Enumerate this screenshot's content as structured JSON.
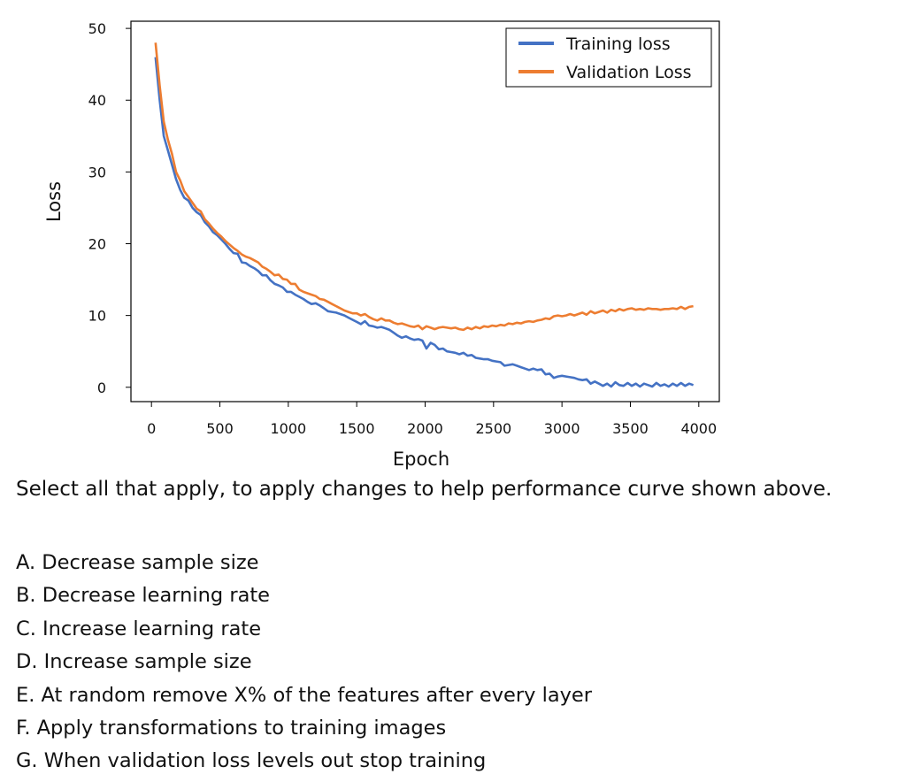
{
  "chart_data": {
    "type": "line",
    "xlabel": "Epoch",
    "ylabel": "Loss",
    "xlim": [
      -150,
      4150
    ],
    "ylim": [
      -2,
      51
    ],
    "x_ticks": [
      "0",
      "500",
      "1000",
      "1500",
      "2000",
      "2500",
      "3000",
      "3500",
      "4000"
    ],
    "y_ticks": [
      "0",
      "10",
      "20",
      "30",
      "40",
      "50"
    ],
    "legend_position": "top-right",
    "grid": false,
    "series": [
      {
        "name": "Training loss",
        "color": "#4472c4",
        "points": [
          [
            30,
            46
          ],
          [
            60,
            40
          ],
          [
            90,
            35
          ],
          [
            120,
            33
          ],
          [
            150,
            31
          ],
          [
            180,
            29
          ],
          [
            210,
            27.5
          ],
          [
            240,
            26.4
          ],
          [
            270,
            26
          ],
          [
            300,
            25
          ],
          [
            330,
            24.4
          ],
          [
            360,
            24
          ],
          [
            390,
            23
          ],
          [
            420,
            22.4
          ],
          [
            450,
            21.6
          ],
          [
            480,
            21.2
          ],
          [
            510,
            20.6
          ],
          [
            540,
            20
          ],
          [
            570,
            19.3
          ],
          [
            600,
            18.7
          ],
          [
            630,
            18.6
          ],
          [
            660,
            17.4
          ],
          [
            690,
            17.3
          ],
          [
            720,
            16.9
          ],
          [
            750,
            16.6
          ],
          [
            780,
            16.2
          ],
          [
            810,
            15.6
          ],
          [
            840,
            15.6
          ],
          [
            870,
            14.9
          ],
          [
            900,
            14.4
          ],
          [
            930,
            14.2
          ],
          [
            960,
            13.9
          ],
          [
            990,
            13.3
          ],
          [
            1020,
            13.3
          ],
          [
            1050,
            12.9
          ],
          [
            1080,
            12.6
          ],
          [
            1110,
            12.3
          ],
          [
            1140,
            11.9
          ],
          [
            1170,
            11.6
          ],
          [
            1200,
            11.7
          ],
          [
            1230,
            11.4
          ],
          [
            1260,
            11
          ],
          [
            1290,
            10.6
          ],
          [
            1320,
            10.5
          ],
          [
            1350,
            10.4
          ],
          [
            1380,
            10.2
          ],
          [
            1410,
            10
          ],
          [
            1440,
            9.7
          ],
          [
            1470,
            9.4
          ],
          [
            1500,
            9.1
          ],
          [
            1530,
            8.8
          ],
          [
            1560,
            9.2
          ],
          [
            1590,
            8.6
          ],
          [
            1620,
            8.5
          ],
          [
            1650,
            8.3
          ],
          [
            1680,
            8.4
          ],
          [
            1710,
            8.2
          ],
          [
            1740,
            8.0
          ],
          [
            1770,
            7.6
          ],
          [
            1800,
            7.2
          ],
          [
            1830,
            6.9
          ],
          [
            1860,
            7.1
          ],
          [
            1890,
            6.8
          ],
          [
            1920,
            6.6
          ],
          [
            1950,
            6.7
          ],
          [
            1980,
            6.5
          ],
          [
            2010,
            5.4
          ],
          [
            2040,
            6.2
          ],
          [
            2070,
            5.9
          ],
          [
            2100,
            5.3
          ],
          [
            2130,
            5.4
          ],
          [
            2160,
            5.0
          ],
          [
            2190,
            4.9
          ],
          [
            2220,
            4.8
          ],
          [
            2250,
            4.6
          ],
          [
            2280,
            4.8
          ],
          [
            2310,
            4.4
          ],
          [
            2340,
            4.5
          ],
          [
            2370,
            4.1
          ],
          [
            2400,
            4.0
          ],
          [
            2430,
            3.9
          ],
          [
            2460,
            3.9
          ],
          [
            2490,
            3.7
          ],
          [
            2520,
            3.6
          ],
          [
            2550,
            3.5
          ],
          [
            2580,
            3.0
          ],
          [
            2610,
            3.1
          ],
          [
            2640,
            3.2
          ],
          [
            2670,
            3.0
          ],
          [
            2700,
            2.8
          ],
          [
            2730,
            2.6
          ],
          [
            2760,
            2.4
          ],
          [
            2790,
            2.6
          ],
          [
            2820,
            2.4
          ],
          [
            2850,
            2.5
          ],
          [
            2880,
            1.8
          ],
          [
            2910,
            1.9
          ],
          [
            2940,
            1.3
          ],
          [
            2970,
            1.5
          ],
          [
            3000,
            1.6
          ],
          [
            3030,
            1.5
          ],
          [
            3060,
            1.4
          ],
          [
            3090,
            1.3
          ],
          [
            3120,
            1.1
          ],
          [
            3150,
            1.0
          ],
          [
            3180,
            1.1
          ],
          [
            3210,
            0.5
          ],
          [
            3240,
            0.8
          ],
          [
            3270,
            0.5
          ],
          [
            3300,
            0.2
          ],
          [
            3330,
            0.5
          ],
          [
            3360,
            0.1
          ],
          [
            3390,
            0.7
          ],
          [
            3420,
            0.3
          ],
          [
            3450,
            0.2
          ],
          [
            3480,
            0.6
          ],
          [
            3510,
            0.2
          ],
          [
            3540,
            0.5
          ],
          [
            3570,
            0.1
          ],
          [
            3600,
            0.5
          ],
          [
            3630,
            0.3
          ],
          [
            3660,
            0.1
          ],
          [
            3690,
            0.6
          ],
          [
            3720,
            0.2
          ],
          [
            3750,
            0.4
          ],
          [
            3780,
            0.1
          ],
          [
            3810,
            0.5
          ],
          [
            3840,
            0.2
          ],
          [
            3870,
            0.6
          ],
          [
            3900,
            0.2
          ],
          [
            3930,
            0.5
          ],
          [
            3960,
            0.3
          ]
        ]
      },
      {
        "name": "Validation Loss",
        "color": "#ed7d31",
        "points": [
          [
            30,
            48
          ],
          [
            60,
            42
          ],
          [
            90,
            37
          ],
          [
            120,
            34.5
          ],
          [
            150,
            32.5
          ],
          [
            180,
            30
          ],
          [
            210,
            28.8
          ],
          [
            240,
            27.3
          ],
          [
            270,
            26.5
          ],
          [
            300,
            25.7
          ],
          [
            330,
            24.9
          ],
          [
            360,
            24.5
          ],
          [
            390,
            23.4
          ],
          [
            420,
            22.8
          ],
          [
            450,
            22.1
          ],
          [
            480,
            21.5
          ],
          [
            510,
            21
          ],
          [
            540,
            20.4
          ],
          [
            570,
            19.9
          ],
          [
            600,
            19.4
          ],
          [
            630,
            19.0
          ],
          [
            660,
            18.5
          ],
          [
            690,
            18.2
          ],
          [
            720,
            18.0
          ],
          [
            750,
            17.7
          ],
          [
            780,
            17.4
          ],
          [
            810,
            16.8
          ],
          [
            840,
            16.5
          ],
          [
            870,
            16.1
          ],
          [
            900,
            15.6
          ],
          [
            930,
            15.7
          ],
          [
            960,
            15.1
          ],
          [
            990,
            15.0
          ],
          [
            1020,
            14.4
          ],
          [
            1050,
            14.4
          ],
          [
            1080,
            13.6
          ],
          [
            1110,
            13.3
          ],
          [
            1140,
            13.1
          ],
          [
            1170,
            12.9
          ],
          [
            1200,
            12.7
          ],
          [
            1230,
            12.3
          ],
          [
            1260,
            12.2
          ],
          [
            1290,
            11.9
          ],
          [
            1320,
            11.6
          ],
          [
            1350,
            11.3
          ],
          [
            1380,
            11.0
          ],
          [
            1410,
            10.7
          ],
          [
            1440,
            10.5
          ],
          [
            1470,
            10.3
          ],
          [
            1500,
            10.3
          ],
          [
            1530,
            10.0
          ],
          [
            1560,
            10.2
          ],
          [
            1590,
            9.8
          ],
          [
            1620,
            9.5
          ],
          [
            1650,
            9.3
          ],
          [
            1680,
            9.6
          ],
          [
            1710,
            9.3
          ],
          [
            1740,
            9.3
          ],
          [
            1770,
            9.0
          ],
          [
            1800,
            8.8
          ],
          [
            1830,
            8.9
          ],
          [
            1860,
            8.7
          ],
          [
            1890,
            8.5
          ],
          [
            1920,
            8.4
          ],
          [
            1950,
            8.6
          ],
          [
            1980,
            8.1
          ],
          [
            2010,
            8.5
          ],
          [
            2040,
            8.3
          ],
          [
            2070,
            8.1
          ],
          [
            2100,
            8.3
          ],
          [
            2130,
            8.4
          ],
          [
            2160,
            8.3
          ],
          [
            2190,
            8.2
          ],
          [
            2220,
            8.3
          ],
          [
            2250,
            8.1
          ],
          [
            2280,
            8.0
          ],
          [
            2310,
            8.3
          ],
          [
            2340,
            8.1
          ],
          [
            2370,
            8.4
          ],
          [
            2400,
            8.2
          ],
          [
            2430,
            8.5
          ],
          [
            2460,
            8.4
          ],
          [
            2490,
            8.6
          ],
          [
            2520,
            8.5
          ],
          [
            2550,
            8.7
          ],
          [
            2580,
            8.6
          ],
          [
            2610,
            8.9
          ],
          [
            2640,
            8.8
          ],
          [
            2670,
            9.0
          ],
          [
            2700,
            8.9
          ],
          [
            2730,
            9.1
          ],
          [
            2760,
            9.2
          ],
          [
            2790,
            9.1
          ],
          [
            2820,
            9.3
          ],
          [
            2850,
            9.4
          ],
          [
            2880,
            9.6
          ],
          [
            2910,
            9.5
          ],
          [
            2940,
            9.9
          ],
          [
            2970,
            10.0
          ],
          [
            3000,
            9.9
          ],
          [
            3030,
            10.0
          ],
          [
            3060,
            10.2
          ],
          [
            3090,
            10.0
          ],
          [
            3120,
            10.2
          ],
          [
            3150,
            10.4
          ],
          [
            3180,
            10.1
          ],
          [
            3210,
            10.6
          ],
          [
            3240,
            10.3
          ],
          [
            3270,
            10.5
          ],
          [
            3300,
            10.7
          ],
          [
            3330,
            10.4
          ],
          [
            3360,
            10.8
          ],
          [
            3390,
            10.6
          ],
          [
            3420,
            10.9
          ],
          [
            3450,
            10.7
          ],
          [
            3480,
            10.9
          ],
          [
            3510,
            11.0
          ],
          [
            3540,
            10.8
          ],
          [
            3570,
            10.9
          ],
          [
            3600,
            10.8
          ],
          [
            3630,
            11.0
          ],
          [
            3660,
            10.9
          ],
          [
            3690,
            10.9
          ],
          [
            3720,
            10.8
          ],
          [
            3750,
            10.9
          ],
          [
            3780,
            10.9
          ],
          [
            3810,
            11.0
          ],
          [
            3840,
            10.9
          ],
          [
            3870,
            11.2
          ],
          [
            3900,
            10.9
          ],
          [
            3930,
            11.2
          ],
          [
            3960,
            11.3
          ]
        ]
      }
    ]
  },
  "question": {
    "prompt": "Select all that apply, to apply changes to help performance curve shown above.",
    "options": [
      "A. Decrease sample size",
      "B. Decrease learning rate",
      "C. Increase learning rate",
      "D. Increase sample size",
      "E. At random remove X% of the features after every layer",
      "F. Apply transformations to training images",
      "G. When validation loss levels out stop training"
    ]
  }
}
